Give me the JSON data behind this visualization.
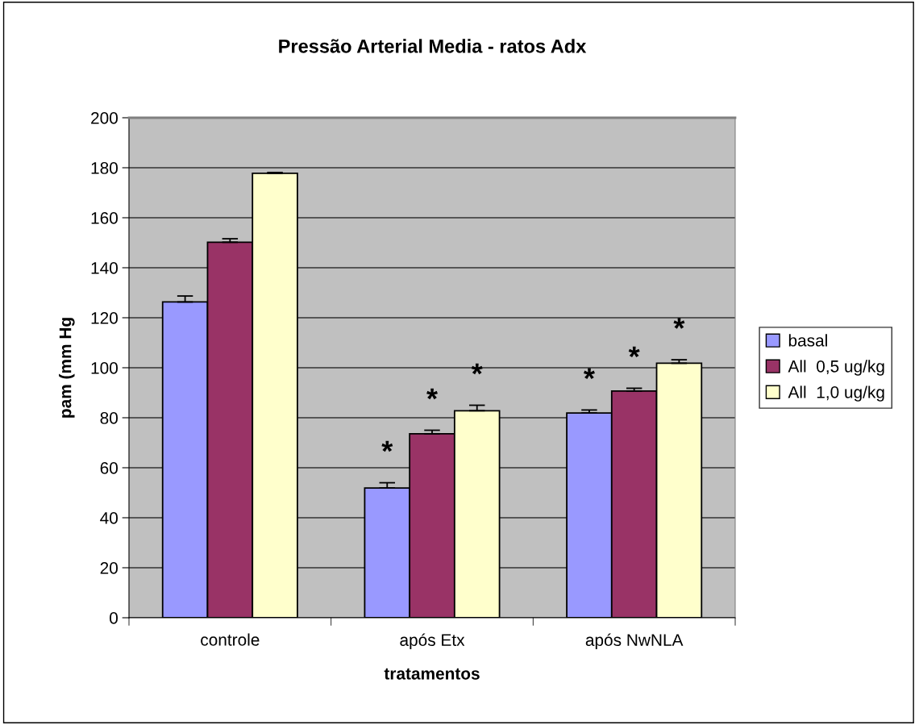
{
  "chart_data": {
    "type": "bar",
    "title": "Pressão Arterial Media - ratos Adx",
    "xlabel": "tratamentos",
    "ylabel": "pam (mm Hg",
    "categories": [
      "controle",
      "após Etx",
      "após NwNLA"
    ],
    "series": [
      {
        "name": "basal",
        "color": "#9999ff",
        "values": [
          126.3,
          51.9,
          81.9
        ],
        "errors": [
          2.4,
          2.1,
          1.2
        ],
        "value_labels": [
          null,
          "*",
          "*"
        ]
      },
      {
        "name": "All  0,5 ug/kg",
        "color": "#993366",
        "values": [
          150.2,
          73.6,
          90.7
        ],
        "errors": [
          1.4,
          1.4,
          1.1
        ],
        "value_labels": [
          null,
          "*",
          "*"
        ]
      },
      {
        "name": "All  1,0 ug/kg",
        "color": "#ffffcc",
        "values": [
          177.8,
          82.8,
          101.8
        ],
        "errors": [
          0.3,
          2.2,
          1.4
        ],
        "value_labels": [
          null,
          "*",
          "*"
        ]
      }
    ],
    "ylim": [
      0,
      200
    ],
    "yticks": [
      0,
      20,
      40,
      60,
      80,
      100,
      120,
      140,
      160,
      180,
      200
    ],
    "grid": "y",
    "legend": "right"
  }
}
